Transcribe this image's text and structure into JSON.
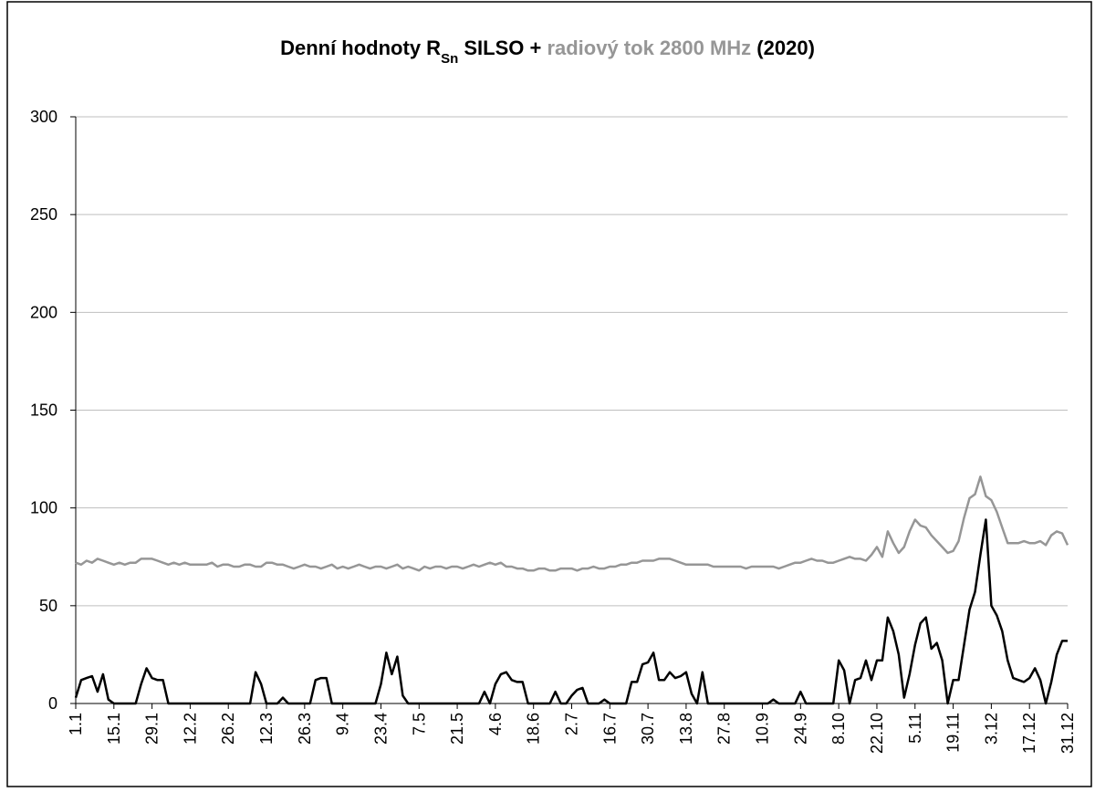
{
  "chart_data": {
    "type": "line",
    "title_parts": [
      {
        "text": "Denní hodnoty R",
        "color": "#000000"
      },
      {
        "text": "Sn",
        "color": "#000000",
        "sub": true
      },
      {
        "text": " SILSO + ",
        "color": "#000000"
      },
      {
        "text": "radiový tok 2800 MHz",
        "color": "#969696"
      },
      {
        "text": " (2020)",
        "color": "#000000"
      }
    ],
    "categories": [
      "1.1",
      null,
      null,
      null,
      null,
      null,
      null,
      "15.1",
      null,
      null,
      null,
      null,
      null,
      null,
      "29.1",
      null,
      null,
      null,
      null,
      null,
      null,
      "12.2",
      null,
      null,
      null,
      null,
      null,
      null,
      "26.2",
      null,
      null,
      null,
      null,
      null,
      null,
      "12.3",
      null,
      null,
      null,
      null,
      null,
      null,
      "26.3",
      null,
      null,
      null,
      null,
      null,
      null,
      "9.4",
      null,
      null,
      null,
      null,
      null,
      null,
      "23.4",
      null,
      null,
      null,
      null,
      null,
      null,
      "7.5",
      null,
      null,
      null,
      null,
      null,
      null,
      "21.5",
      null,
      null,
      null,
      null,
      null,
      null,
      "4.6",
      null,
      null,
      null,
      null,
      null,
      null,
      "18.6",
      null,
      null,
      null,
      null,
      null,
      null,
      "2.7",
      null,
      null,
      null,
      null,
      null,
      null,
      "16.7",
      null,
      null,
      null,
      null,
      null,
      null,
      "30.7",
      null,
      null,
      null,
      null,
      null,
      null,
      "13.8",
      null,
      null,
      null,
      null,
      null,
      null,
      "27.8",
      null,
      null,
      null,
      null,
      null,
      null,
      "10.9",
      null,
      null,
      null,
      null,
      null,
      null,
      "24.9",
      null,
      null,
      null,
      null,
      null,
      null,
      "8.10",
      null,
      null,
      null,
      null,
      null,
      null,
      "22.10",
      null,
      null,
      null,
      null,
      null,
      null,
      "5.11",
      null,
      null,
      null,
      null,
      null,
      null,
      "19.11",
      null,
      null,
      null,
      null,
      null,
      null,
      "3.12",
      null,
      null,
      null,
      null,
      null,
      null,
      "17.12",
      null,
      null,
      null,
      null,
      null,
      null,
      "31.12"
    ],
    "series": [
      {
        "color": "#969696",
        "values": [
          72,
          71,
          73,
          72,
          74,
          73,
          72,
          71,
          72,
          71,
          72,
          72,
          74,
          74,
          74,
          73,
          72,
          71,
          72,
          71,
          72,
          71,
          71,
          71,
          71,
          72,
          70,
          71,
          71,
          70,
          70,
          71,
          71,
          70,
          70,
          72,
          72,
          71,
          71,
          70,
          69,
          70,
          71,
          70,
          70,
          69,
          70,
          71,
          69,
          70,
          69,
          70,
          71,
          70,
          69,
          70,
          70,
          69,
          70,
          71,
          69,
          70,
          69,
          68,
          70,
          69,
          70,
          70,
          69,
          70,
          70,
          69,
          70,
          71,
          70,
          71,
          72,
          71,
          72,
          70,
          70,
          69,
          69,
          68,
          68,
          69,
          69,
          68,
          68,
          69,
          69,
          69,
          68,
          69,
          69,
          70,
          69,
          69,
          70,
          70,
          71,
          71,
          72,
          72,
          73,
          73,
          73,
          74,
          74,
          74,
          73,
          72,
          71,
          71,
          71,
          71,
          71,
          70,
          70,
          70,
          70,
          70,
          70,
          69,
          70,
          70,
          70,
          70,
          70,
          69,
          70,
          71,
          72,
          72,
          73,
          74,
          73,
          73,
          72,
          72,
          73,
          74,
          75,
          74,
          74,
          73,
          76,
          80,
          75,
          88,
          82,
          77,
          80,
          88,
          94,
          91,
          90,
          86,
          83,
          80,
          77,
          78,
          83,
          95,
          105,
          107,
          116,
          106,
          104,
          98,
          90,
          82,
          82,
          82,
          83,
          82,
          82,
          83,
          81,
          86,
          88,
          87,
          81
        ]
      },
      {
        "color": "#000000",
        "values": [
          3,
          12,
          13,
          14,
          6,
          15,
          2,
          0,
          0,
          0,
          0,
          0,
          10,
          18,
          13,
          12,
          12,
          0,
          0,
          0,
          0,
          0,
          0,
          0,
          0,
          0,
          0,
          0,
          0,
          0,
          0,
          0,
          0,
          16,
          10,
          0,
          0,
          0,
          3,
          0,
          0,
          0,
          0,
          0,
          12,
          13,
          13,
          0,
          0,
          0,
          0,
          0,
          0,
          0,
          0,
          0,
          10,
          26,
          15,
          24,
          4,
          0,
          0,
          0,
          0,
          0,
          0,
          0,
          0,
          0,
          0,
          0,
          0,
          0,
          0,
          6,
          0,
          10,
          15,
          16,
          12,
          11,
          11,
          0,
          0,
          0,
          0,
          0,
          6,
          0,
          0,
          4,
          7,
          8,
          0,
          0,
          0,
          2,
          0,
          0,
          0,
          0,
          11,
          11,
          20,
          21,
          26,
          12,
          12,
          16,
          13,
          14,
          16,
          5,
          0,
          16,
          0,
          0,
          0,
          0,
          0,
          0,
          0,
          0,
          0,
          0,
          0,
          0,
          2,
          0,
          0,
          0,
          0,
          6,
          0,
          0,
          0,
          0,
          0,
          0,
          22,
          17,
          0,
          12,
          13,
          22,
          12,
          22,
          22,
          44,
          37,
          25,
          3,
          15,
          30,
          41,
          44,
          28,
          31,
          22,
          0,
          12,
          12,
          30,
          48,
          57,
          76,
          94,
          50,
          45,
          37,
          22,
          13,
          12,
          11,
          13,
          18,
          12,
          0,
          11,
          25,
          32,
          32
        ]
      }
    ],
    "ylim": [
      0,
      300
    ],
    "yticks": [
      0,
      50,
      100,
      150,
      200,
      250,
      300
    ],
    "grid": true
  }
}
